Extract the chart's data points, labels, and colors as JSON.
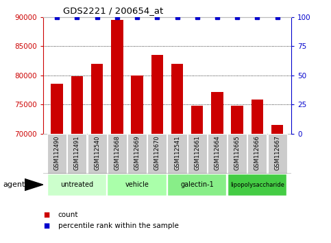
{
  "title": "GDS2221 / 200654_at",
  "samples": [
    "GSM112490",
    "GSM112491",
    "GSM112540",
    "GSM112668",
    "GSM112669",
    "GSM112670",
    "GSM112541",
    "GSM112661",
    "GSM112664",
    "GSM112665",
    "GSM112666",
    "GSM112667"
  ],
  "counts": [
    78500,
    79800,
    82000,
    89500,
    80000,
    83500,
    82000,
    74800,
    77200,
    74800,
    75800,
    71500
  ],
  "percentiles": [
    100,
    100,
    100,
    100,
    100,
    100,
    100,
    100,
    100,
    100,
    100,
    100
  ],
  "ylim_left": [
    70000,
    90000
  ],
  "ylim_right": [
    0,
    100
  ],
  "yticks_left": [
    70000,
    75000,
    80000,
    85000,
    90000
  ],
  "yticks_right": [
    0,
    25,
    50,
    75,
    100
  ],
  "bar_color": "#cc0000",
  "dot_color": "#0000cc",
  "groups": [
    {
      "label": "untreated",
      "start": 0,
      "end": 3,
      "color": "#ccffcc"
    },
    {
      "label": "vehicle",
      "start": 3,
      "end": 6,
      "color": "#aaffaa"
    },
    {
      "label": "galectin-1",
      "start": 6,
      "end": 9,
      "color": "#88ee88"
    },
    {
      "label": "lipopolysaccharide",
      "start": 9,
      "end": 12,
      "color": "#44cc44"
    }
  ],
  "agent_label": "agent",
  "legend_count_label": "count",
  "legend_percentile_label": "percentile rank within the sample",
  "title_color": "#000000",
  "left_axis_color": "#cc0000",
  "right_axis_color": "#0000cc",
  "grid_linestyle": "dotted",
  "grid_color": "#000000",
  "sample_box_color": "#cccccc",
  "bar_bottom": 70000
}
